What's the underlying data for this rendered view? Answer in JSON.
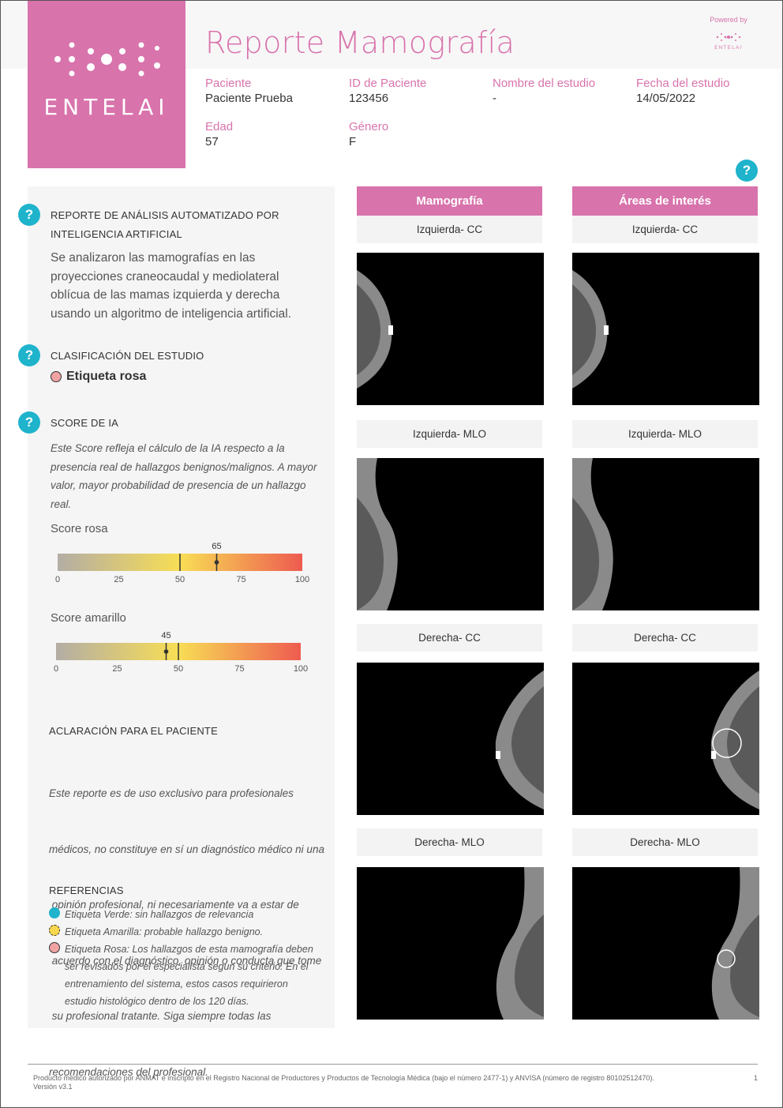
{
  "brand": {
    "name": "ENTELAI",
    "powered_by": "Powered by",
    "powered_name": "ENTELAI",
    "accent": "#d873ac",
    "help_color": "#1fb3cc"
  },
  "title": "Reporte Mamografía",
  "patient": {
    "paciente_label": "Paciente",
    "paciente_value": "Paciente Prueba",
    "id_label": "ID de Paciente",
    "id_value": "123456",
    "estudio_label": "Nombre del estudio",
    "estudio_value": "-",
    "fecha_label": "Fecha del estudio",
    "fecha_value": "14/05/2022",
    "edad_label": "Edad",
    "edad_value": "57",
    "genero_label": "Género",
    "genero_value": "F"
  },
  "help_glyph": "?",
  "analysis": {
    "title_line1": "REPORTE DE ANÁLISIS AUTOMATIZADO POR",
    "title_line2": "INTELIGENCIA ARTIFICIAL",
    "text": "Se analizaron las mamografías en las proyecciones craneocaudal y mediolateral oblícua de las mamas izquierda y derecha usando un algoritmo de inteligencia artificial."
  },
  "classification": {
    "title": "CLASIFICACIÓN DEL ESTUDIO",
    "label": "Etiqueta rosa"
  },
  "score": {
    "title": "SCORE DE IA",
    "description": "Este Score refleja el cálculo de la IA respecto a la presencia real de hallazgos benignos/malignos. A mayor valor, mayor probabilidad de presencia de un hallazgo real.",
    "ticks": [
      "0",
      "25",
      "50",
      "75",
      "100"
    ],
    "rosa": {
      "label": "Score rosa",
      "value": 65,
      "value_text": "65",
      "threshold": 50
    },
    "amarillo": {
      "label": "Score amarillo",
      "value": 45,
      "value_text": "45",
      "threshold": 50
    }
  },
  "clarification": {
    "title": "ACLARACIÓN PARA EL PACIENTE",
    "lines": [
      "Este reporte es de uso exclusivo para profesionales",
      "médicos, no constituye en sí un diagnóstico médico ni una",
      " opinión profesional, ni necesariamente va a estar de",
      " acuerdo con el diagnóstico, opinión o conducta que tome",
      " su profesional tratante. Siga siempre todas las",
      "recomendaciones del profesional."
    ]
  },
  "references": {
    "title": "REFERENCIAS",
    "verde": "Etiqueta Verde: sin hallazgos de relevancia",
    "amarilla": "Etiqueta Amarilla: probable hallazgo benigno.",
    "rosa_lines": [
      "Etiqueta Rosa: Los hallazgos de esta mamografía deben",
      "ser revisados por el especialista segun su criterio. En el",
      "entrenamiento del sistema, estos casos requirieron",
      "estudio histológico dentro de los 120 días."
    ]
  },
  "images": {
    "col_mamografia": "Mamografía",
    "col_areas": "Áreas de interés",
    "views": [
      "Izquierda- CC",
      "Izquierda- MLO",
      "Derecha- CC",
      "Derecha- MLO"
    ]
  },
  "footer": {
    "line1": "Producto médico autorizado por ANMAT e inscripto en el Registro Nacional de Productores y Productos de Tecnología Médica (bajo el número 2477-1) y ANVISA (número de registro 80102512470).",
    "line2": "Versión v3.1",
    "page": "1"
  }
}
